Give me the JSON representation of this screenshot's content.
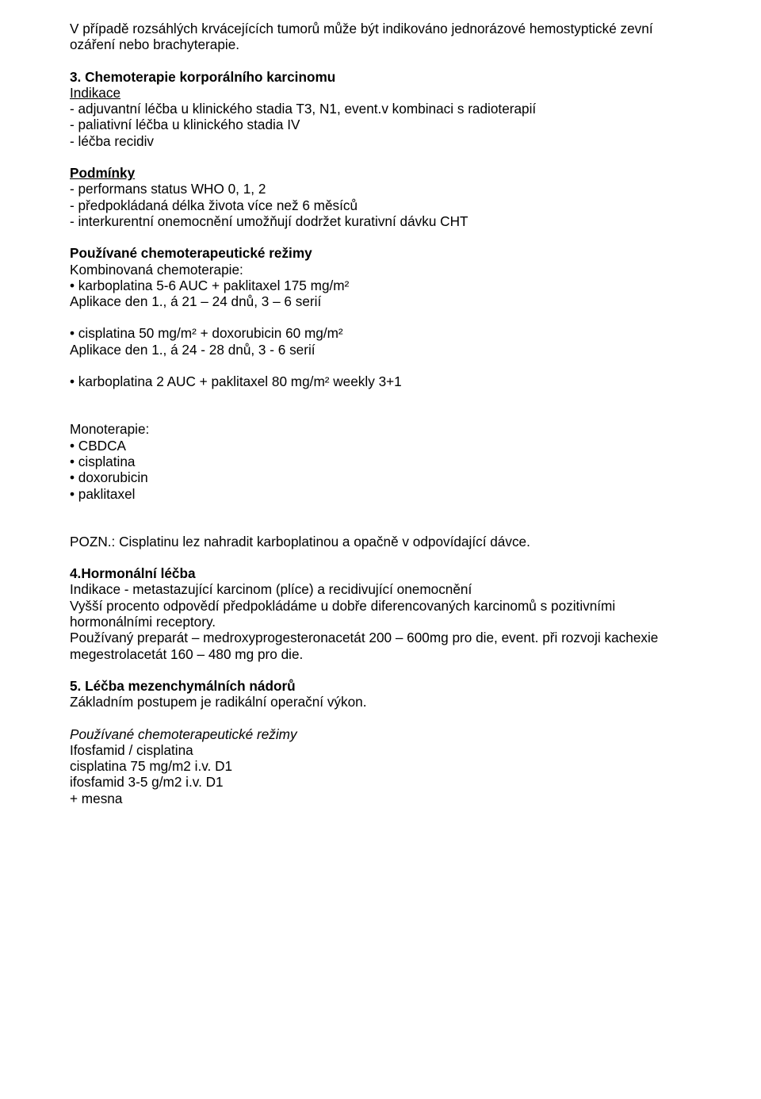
{
  "doc": {
    "p1": "V případě rozsáhlých krvácejících tumorů může být indikováno jednorázové hemostyptické zevní ozáření nebo brachyterapie.",
    "s3": {
      "title": "3. Chemoterapie korporálního karcinomu",
      "indikace_label": "Indikace",
      "b1": "- adjuvantní léčba u klinického stadia T3, N1, event.v kombinaci s radioterapií",
      "b2": "- paliativní léčba u klinického stadia IV",
      "b3": "- léčba recidiv",
      "podminky_label": "Podmínky",
      "c1": "- performans status WHO 0, 1, 2",
      "c2": "- předpokládaná délka života více než 6 měsíců",
      "c3": "- interkurentní onemocnění umožňují dodržet kurativní dávku CHT",
      "regimy_label": "Používané chemoterapeutické režimy",
      "komb_label": "Kombinovaná chemoterapie:",
      "k1": "• karboplatina 5-6 AUC + paklitaxel 175 mg/m²",
      "k1a": " Aplikace den 1., á 21 – 24 dnů, 3 – 6 serií",
      "k2": "• cisplatina 50 mg/m² + doxorubicin 60 mg/m²",
      "k2a": " Aplikace den 1., á 24 - 28 dnů, 3 - 6 serií",
      "k3": "• karboplatina 2 AUC + paklitaxel 80 mg/m² weekly 3+1",
      "mono_label": "Monoterapie:",
      "m1": "• CBDCA",
      "m2": "• cisplatina",
      "m3": "• doxorubicin",
      "m4": "• paklitaxel",
      "pozn": "POZN.: Cisplatinu lez nahradit karboplatinou a opačně v odpovídající dávce."
    },
    "s4": {
      "title": "4.Hormonální léčba",
      "l1": "Indikace - metastazující karcinom (plíce) a recidivující onemocnění",
      "l2": "Vyšší procento odpovědí předpokládáme u dobře diferencovaných karcinomů s pozitivními hormonálními receptory.",
      "l3": "Používaný preparát – medroxyprogesteronacetát 200 – 600mg pro die, event. při rozvoji kachexie megestrolacetát 160 – 480 mg pro die."
    },
    "s5": {
      "title": "5. Léčba mezenchymálních nádorů",
      "l1": "Základním postupem je radikální operační výkon.",
      "reg_label": "Používané chemoterapeutické režimy",
      "r1": "Ifosfamid / cisplatina",
      "r2": "cisplatina 75 mg/m2 i.v. D1",
      "r3": "ifosfamid 3-5 g/m2 i.v. D1",
      "r4": "+ mesna"
    }
  }
}
